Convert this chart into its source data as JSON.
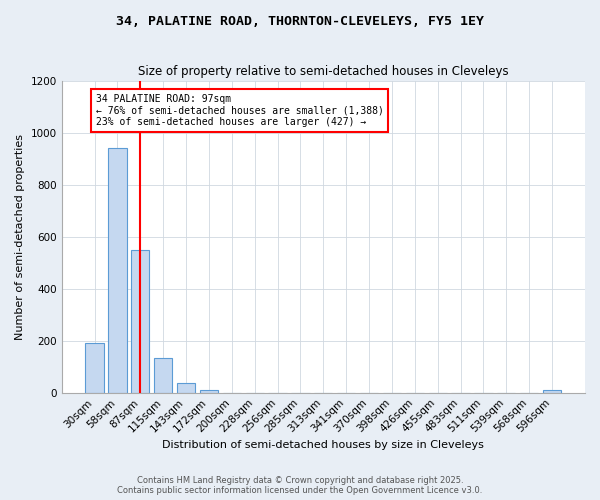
{
  "title1": "34, PALATINE ROAD, THORNTON-CLEVELEYS, FY5 1EY",
  "title2": "Size of property relative to semi-detached houses in Cleveleys",
  "xlabel": "Distribution of semi-detached houses by size in Cleveleys",
  "ylabel": "Number of semi-detached properties",
  "categories": [
    "30sqm",
    "58sqm",
    "87sqm",
    "115sqm",
    "143sqm",
    "172sqm",
    "200sqm",
    "228sqm",
    "256sqm",
    "285sqm",
    "313sqm",
    "341sqm",
    "370sqm",
    "398sqm",
    "426sqm",
    "455sqm",
    "483sqm",
    "511sqm",
    "539sqm",
    "568sqm",
    "596sqm"
  ],
  "values": [
    193,
    940,
    550,
    133,
    38,
    10,
    0,
    0,
    0,
    0,
    0,
    0,
    0,
    0,
    0,
    0,
    0,
    0,
    0,
    0,
    10
  ],
  "bar_color": "#c5d8f0",
  "bar_edge_color": "#5b9bd5",
  "red_line_index": 2,
  "annotation_label": "34 PALATINE ROAD: 97sqm",
  "annotation_line1": "← 76% of semi-detached houses are smaller (1,388)",
  "annotation_line2": "23% of semi-detached houses are larger (427) →",
  "ylim": [
    0,
    1200
  ],
  "yticks": [
    0,
    200,
    400,
    600,
    800,
    1000,
    1200
  ],
  "footer1": "Contains HM Land Registry data © Crown copyright and database right 2025.",
  "footer2": "Contains public sector information licensed under the Open Government Licence v3.0.",
  "bg_color": "#e8eef5",
  "plot_bg_color": "#ffffff"
}
